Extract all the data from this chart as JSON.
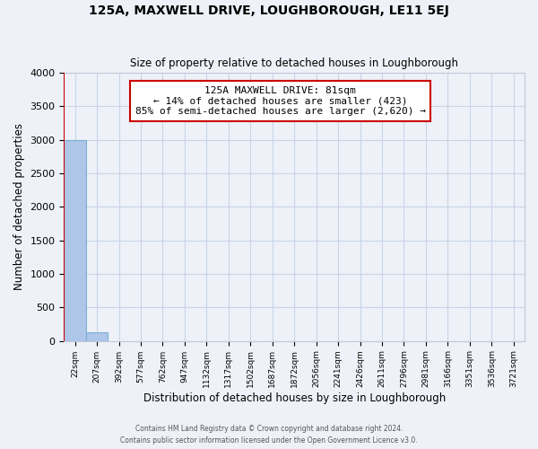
{
  "title": "125A, MAXWELL DRIVE, LOUGHBOROUGH, LE11 5EJ",
  "subtitle": "Size of property relative to detached houses in Loughborough",
  "xlabel": "Distribution of detached houses by size in Loughborough",
  "ylabel": "Number of detached properties",
  "bin_labels": [
    "22sqm",
    "207sqm",
    "392sqm",
    "577sqm",
    "762sqm",
    "947sqm",
    "1132sqm",
    "1317sqm",
    "1502sqm",
    "1687sqm",
    "1872sqm",
    "2056sqm",
    "2241sqm",
    "2426sqm",
    "2611sqm",
    "2796sqm",
    "2981sqm",
    "3166sqm",
    "3351sqm",
    "3536sqm",
    "3721sqm"
  ],
  "bar_values": [
    3000,
    125,
    0,
    0,
    0,
    0,
    0,
    0,
    0,
    0,
    0,
    0,
    0,
    0,
    0,
    0,
    0,
    0,
    0,
    0,
    0
  ],
  "bar_color": "#aec6e8",
  "bar_edge_color": "#7ab0d4",
  "ylim": [
    0,
    4000
  ],
  "yticks": [
    0,
    500,
    1000,
    1500,
    2000,
    2500,
    3000,
    3500,
    4000
  ],
  "annotation_title": "125A MAXWELL DRIVE: 81sqm",
  "annotation_line1": "← 14% of detached houses are smaller (423)",
  "annotation_line2": "85% of semi-detached houses are larger (2,620) →",
  "annotation_box_color": "#ffffff",
  "annotation_box_edge": "#cc0000",
  "property_line_color": "#cc0000",
  "grid_color": "#c8d4e8",
  "background_color": "#eef2f8",
  "footer1": "Contains HM Land Registry data © Crown copyright and database right 2024.",
  "footer2": "Contains public sector information licensed under the Open Government Licence v3.0."
}
